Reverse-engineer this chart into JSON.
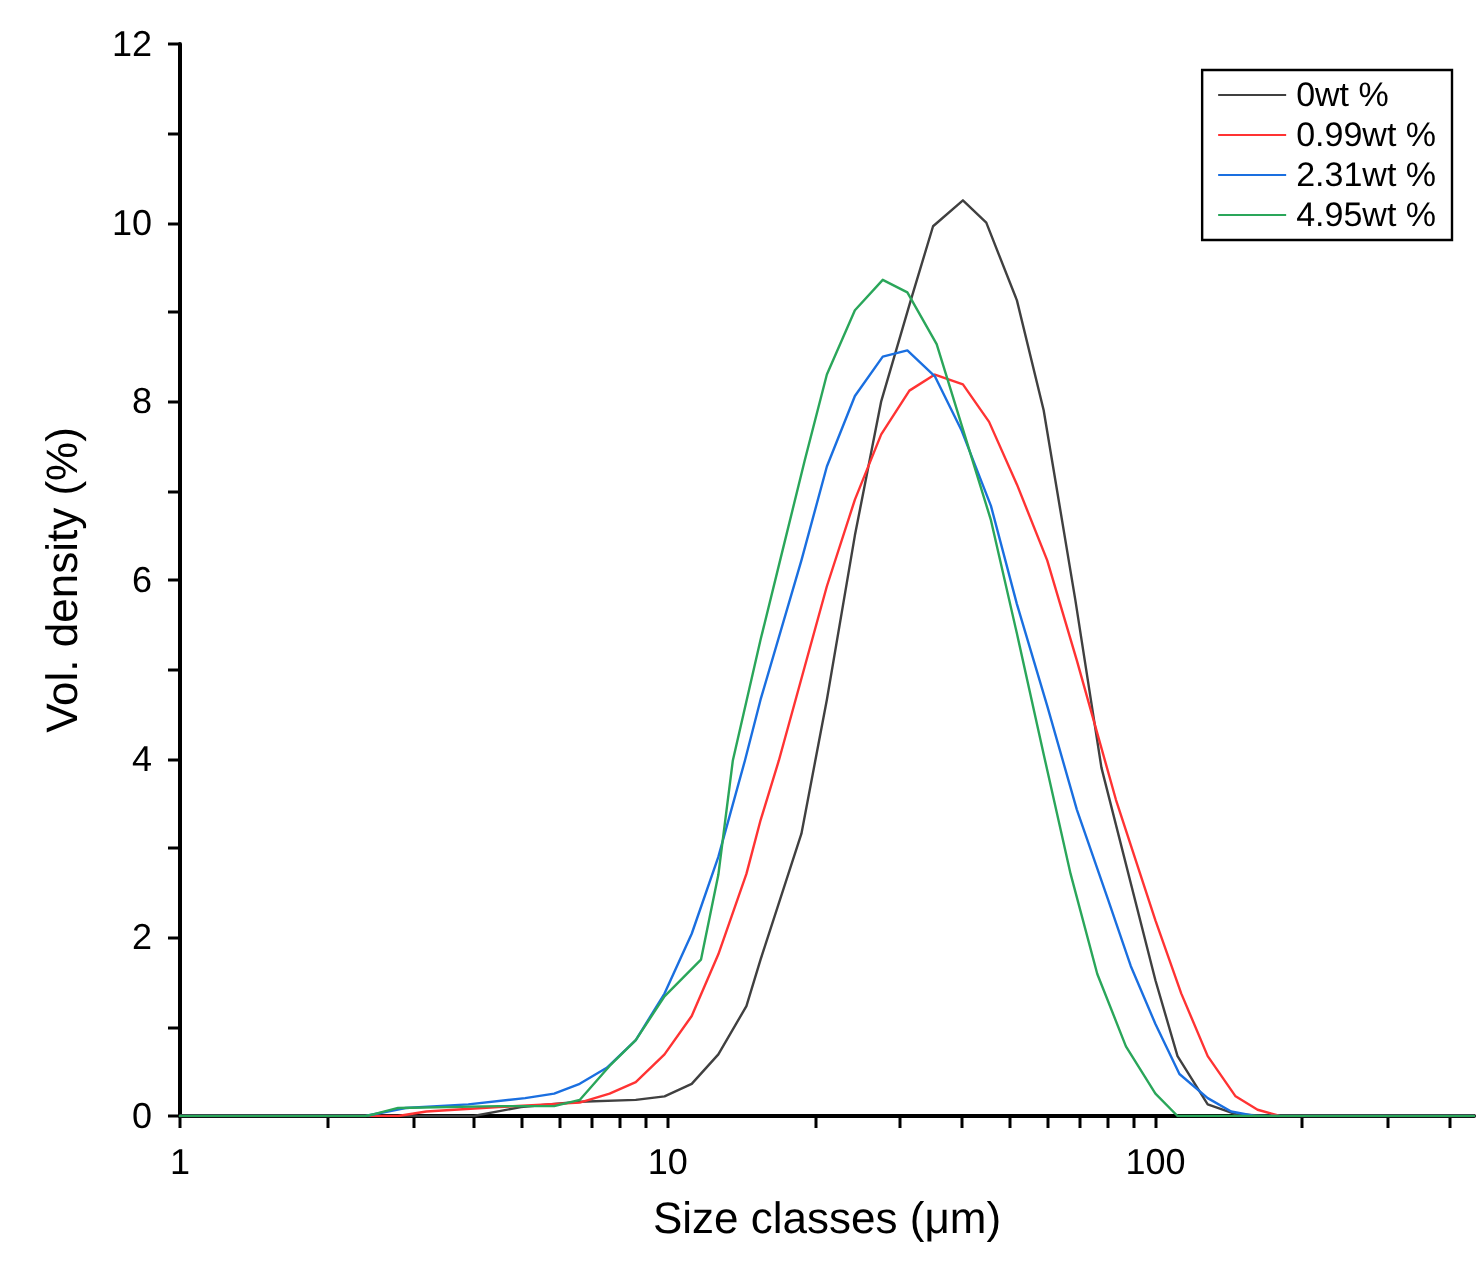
{
  "chart_data": {
    "type": "line",
    "xlabel": "Size classes (μm)",
    "ylabel": "Vol. density (%)",
    "log": "x",
    "xlim": [
      1,
      450
    ],
    "xticks": [
      1,
      {
        "value": 2,
        "label": null
      },
      {
        "value": 3,
        "label": null
      },
      {
        "value": 4,
        "label": null
      },
      {
        "value": 5,
        "label": null
      },
      {
        "value": 6,
        "label": null
      },
      {
        "value": 7,
        "label": null
      },
      {
        "value": 8,
        "label": null
      },
      {
        "value": 9,
        "label": null
      },
      10,
      {
        "value": 20,
        "label": null
      },
      {
        "value": 30,
        "label": null
      },
      {
        "value": 40,
        "label": null
      },
      {
        "value": 50,
        "label": null
      },
      {
        "value": 60,
        "label": null
      },
      {
        "value": 70,
        "label": null
      },
      {
        "value": 80,
        "label": null
      },
      {
        "value": 90,
        "label": null
      },
      100,
      {
        "value": 200,
        "label": null
      },
      {
        "value": 300,
        "label": null
      },
      {
        "value": 400,
        "label": null
      }
    ],
    "ylim": [
      0,
      12
    ],
    "yticks": [
      0,
      {
        "value": 1,
        "label": null
      },
      2,
      {
        "value": 3,
        "label": null
      },
      4,
      {
        "value": 5,
        "label": null
      },
      6,
      {
        "value": 7,
        "label": null
      },
      8,
      {
        "value": 9,
        "label": null
      },
      10,
      {
        "value": 11,
        "label": null
      },
      12
    ],
    "grid": false,
    "legend": "top right",
    "marker": "none",
    "line_style": "solid",
    "series": [
      {
        "name": "0wt %",
        "color": "#404040",
        "x": [
          1,
          4,
          5,
          6.6,
          8.6,
          9.85,
          11.2,
          12.7,
          14.5,
          15.5,
          18.8,
          21.2,
          24.2,
          27.4,
          31.5,
          35,
          40.3,
          45,
          52,
          59,
          68.5,
          77.5,
          100,
          111,
          128,
          146,
          170,
          450
        ],
        "values": [
          0,
          0,
          0.1,
          0.16,
          0.18,
          0.22,
          0.36,
          0.69,
          1.23,
          1.75,
          3.16,
          4.66,
          6.5,
          8.0,
          9.13,
          9.96,
          10.25,
          10.0,
          9.13,
          7.9,
          5.78,
          3.9,
          1.52,
          0.67,
          0.13,
          0.02,
          0,
          0
        ]
      },
      {
        "name": "0.99wt %",
        "color": "#ff3333",
        "x": [
          1,
          2.8,
          3.2,
          4.5,
          6.6,
          7.6,
          8.6,
          9.85,
          11.2,
          12.7,
          14.5,
          15.5,
          16.9,
          21.2,
          24.2,
          27.4,
          31.3,
          35.3,
          40.3,
          45.6,
          52,
          60,
          69,
          83,
          100,
          113,
          128,
          146,
          162,
          180,
          450
        ],
        "values": [
          0,
          0,
          0.05,
          0.1,
          0.15,
          0.25,
          0.38,
          0.69,
          1.12,
          1.81,
          2.71,
          3.31,
          3.98,
          5.93,
          6.9,
          7.63,
          8.12,
          8.3,
          8.19,
          7.77,
          7.07,
          6.22,
          5.1,
          3.54,
          2.19,
          1.37,
          0.67,
          0.22,
          0.07,
          0,
          0
        ]
      },
      {
        "name": "2.31wt %",
        "color": "#1a6fe0",
        "x": [
          1,
          2.4,
          2.5,
          2.9,
          3.9,
          5.1,
          5.85,
          6.6,
          7.5,
          8.6,
          9.85,
          11.2,
          12.7,
          14.4,
          15.5,
          18.8,
          21.2,
          24.2,
          27.6,
          31,
          35.3,
          40,
          46,
          52,
          60,
          69,
          80,
          89,
          100,
          112,
          128,
          143,
          160,
          450
        ],
        "values": [
          0,
          0,
          0.02,
          0.09,
          0.13,
          0.2,
          0.25,
          0.36,
          0.54,
          0.85,
          1.37,
          2.04,
          2.9,
          3.98,
          4.66,
          6.22,
          7.27,
          8.06,
          8.5,
          8.57,
          8.28,
          7.68,
          6.83,
          5.73,
          4.59,
          3.43,
          2.42,
          1.68,
          1.03,
          0.47,
          0.2,
          0.05,
          0,
          0
        ]
      },
      {
        "name": "4.95wt %",
        "color": "#2aa65a",
        "x": [
          1,
          2.4,
          2.5,
          2.8,
          4.5,
          5.85,
          6.6,
          7.6,
          8.6,
          9.85,
          11.7,
          12.7,
          13.6,
          15.5,
          17,
          19.1,
          21.2,
          24.2,
          27.6,
          31,
          35.6,
          40.6,
          46,
          52,
          59,
          67,
          76,
          87,
          100,
          111,
          450
        ],
        "values": [
          0,
          0,
          0.02,
          0.09,
          0.11,
          0.11,
          0.18,
          0.56,
          0.85,
          1.34,
          1.75,
          2.7,
          3.98,
          5.33,
          6.22,
          7.34,
          8.3,
          9.02,
          9.36,
          9.22,
          8.64,
          7.63,
          6.67,
          5.4,
          4.05,
          2.71,
          1.59,
          0.78,
          0.25,
          0,
          0
        ]
      }
    ]
  }
}
